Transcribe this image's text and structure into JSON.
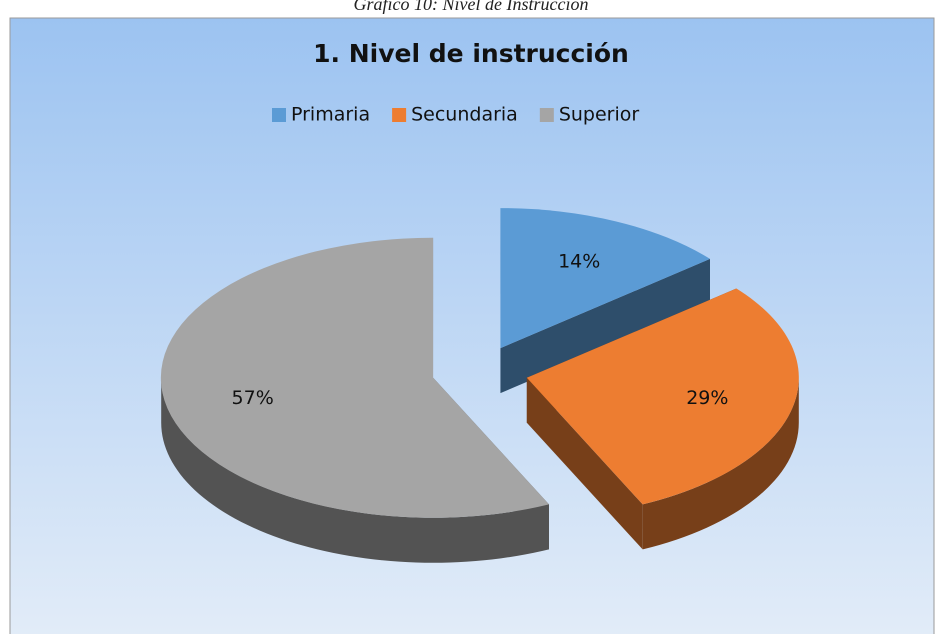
{
  "caption": "Gráfico 10: Nivel de Instrucción",
  "chart_data": {
    "type": "pie3d",
    "title": "1. Nivel de instrucción",
    "categories": [
      "Primaria",
      "Secundaria",
      "Superior"
    ],
    "values": [
      14,
      29,
      57
    ],
    "value_labels": [
      "14%",
      "29%",
      "57%"
    ],
    "colors": [
      "#5b9bd5",
      "#ed7d31",
      "#a5a5a5"
    ],
    "legend": "top"
  }
}
